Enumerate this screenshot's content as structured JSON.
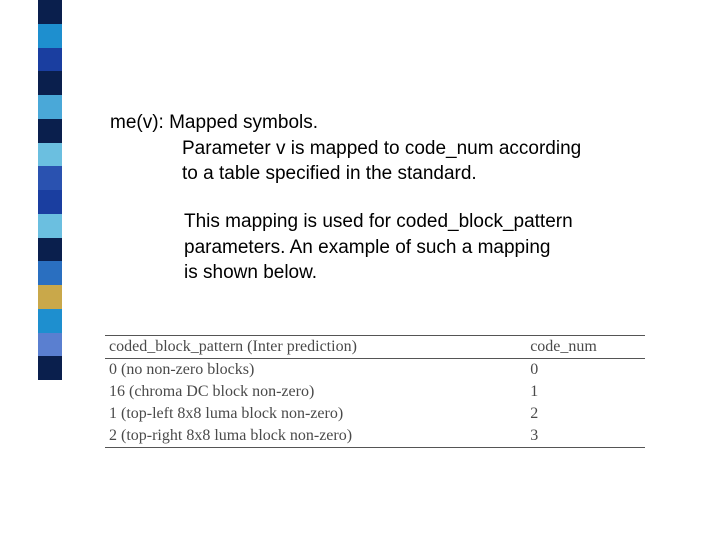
{
  "sidebar": {
    "colors": [
      "#0a1f4d",
      "#1e8fcf",
      "#1a3ea0",
      "#0a1f4d",
      "#4aa8d8",
      "#0a1f4d",
      "#6bbfe0",
      "#2a52b0",
      "#1a3ea0",
      "#6bbfe0",
      "#0a1f4d",
      "#2a6fc0",
      "#c9a84a",
      "#1e8fcf",
      "#5a7fd0",
      "#0a1f4d"
    ]
  },
  "text": {
    "line1": "me(v): Mapped symbols.",
    "line2": "Parameter v is mapped to code_num according",
    "line3": "to a table specified in the standard.",
    "line4": "This mapping is used for coded_block_pattern",
    "line5": " parameters. An example of such a mapping",
    "line6": " is shown below."
  },
  "table": {
    "header": {
      "col1": "coded_block_pattern (Inter prediction)",
      "col2": "code_num"
    },
    "rows": [
      {
        "col1": "0 (no non-zero blocks)",
        "col2": "0"
      },
      {
        "col1": "16 (chroma DC block non-zero)",
        "col2": "1"
      },
      {
        "col1": "1 (top-left 8x8 luma block non-zero)",
        "col2": "2"
      },
      {
        "col1": "2 (top-right 8x8 luma block non-zero)",
        "col2": "3"
      }
    ],
    "border_color": "#555555",
    "text_color": "#4a4a4a",
    "font_family": "Times New Roman",
    "header_fontsize": 16,
    "body_fontsize": 16
  },
  "body_text": {
    "font_family": "Arial",
    "fontsize": 19,
    "color": "#000000"
  },
  "background_color": "#ffffff"
}
